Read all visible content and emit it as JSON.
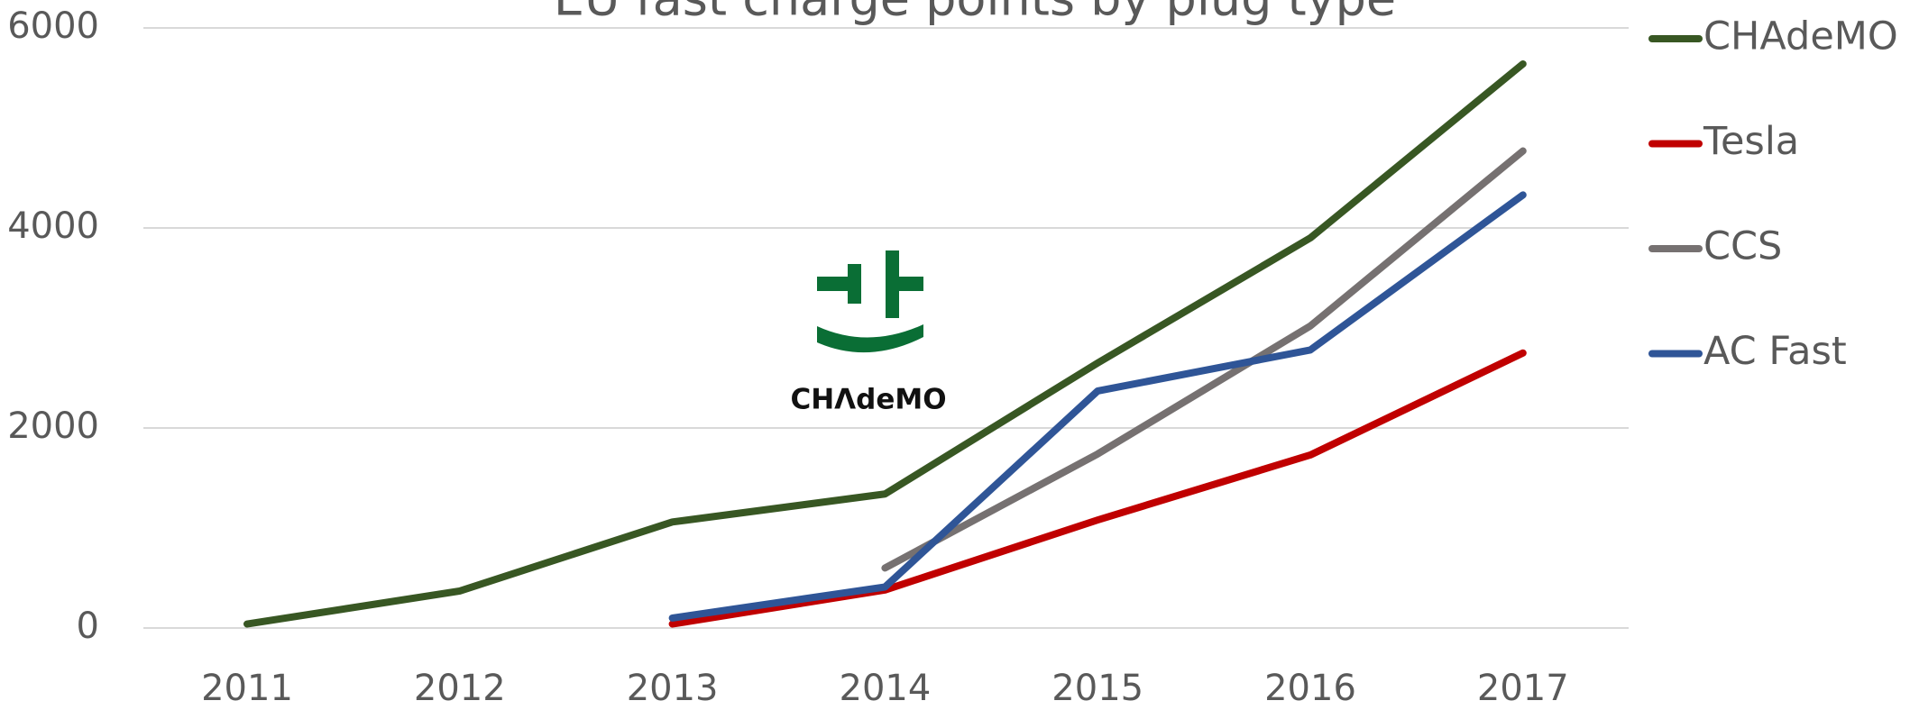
{
  "chart_data": {
    "type": "line",
    "title": "EU fast charge points by plug type",
    "categories": [
      "2011",
      "2012",
      "2013",
      "2014",
      "2015",
      "2016",
      "2017"
    ],
    "series": [
      {
        "name": "CHAdeMO",
        "color": "#385723",
        "values": [
          40,
          370,
          1060,
          1340,
          2650,
          3900,
          5640
        ]
      },
      {
        "name": "Tesla",
        "color": "#c00000",
        "values": [
          null,
          null,
          40,
          380,
          1080,
          1730,
          2750
        ]
      },
      {
        "name": "CCS",
        "color": "#767171",
        "values": [
          null,
          null,
          null,
          600,
          1740,
          3020,
          4770
        ]
      },
      {
        "name": "AC Fast",
        "color": "#2f5597",
        "values": [
          null,
          null,
          100,
          410,
          2370,
          2780,
          4330
        ]
      }
    ],
    "ylim": [
      0,
      6000
    ],
    "yticks": [
      0,
      2000,
      4000,
      6000
    ],
    "grid": true,
    "legend": "right",
    "logo_text": "CHΛdeMO"
  }
}
